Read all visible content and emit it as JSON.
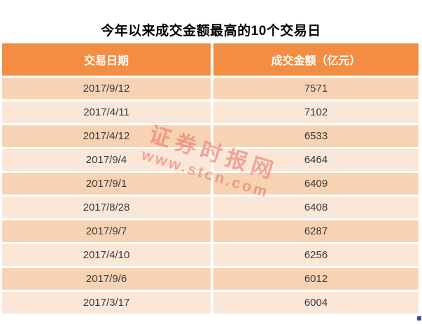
{
  "title": "今年以来成交金额最高的10个交易日",
  "table": {
    "headers": [
      "交易日期",
      "成交金额（亿元）"
    ],
    "rows": [
      {
        "date": "2017/9/12",
        "amount": "7571"
      },
      {
        "date": "2017/4/11",
        "amount": "7102"
      },
      {
        "date": "2017/4/12",
        "amount": "6533"
      },
      {
        "date": "2017/9/4",
        "amount": "6464"
      },
      {
        "date": "2017/9/1",
        "amount": "6409"
      },
      {
        "date": "2017/8/28",
        "amount": "6408"
      },
      {
        "date": "2017/9/7",
        "amount": "6287"
      },
      {
        "date": "2017/4/10",
        "amount": "6256"
      },
      {
        "date": "2017/9/6",
        "amount": "6012"
      },
      {
        "date": "2017/3/17",
        "amount": "6004"
      }
    ]
  },
  "watermark": {
    "site_name": "证券时报网",
    "url": "www.stcn.com"
  },
  "colors": {
    "header_bg": "#F28D42",
    "header_text": "#FFFFFF",
    "row_dark": "#F8D3B3",
    "row_light": "#FBE7D8",
    "cell_text": "#3A3A3A",
    "watermark": "#E7635A",
    "handle": "#3E4D8B"
  },
  "chart_data": {
    "type": "table",
    "title": "今年以来成交金额最高的10个交易日",
    "columns": [
      "交易日期",
      "成交金额（亿元）"
    ],
    "rows": [
      [
        "2017/9/12",
        7571
      ],
      [
        "2017/4/11",
        7102
      ],
      [
        "2017/4/12",
        6533
      ],
      [
        "2017/9/4",
        6464
      ],
      [
        "2017/9/1",
        6409
      ],
      [
        "2017/8/28",
        6408
      ],
      [
        "2017/9/7",
        6287
      ],
      [
        "2017/4/10",
        6256
      ],
      [
        "2017/9/6",
        6012
      ],
      [
        "2017/3/17",
        6004
      ]
    ]
  }
}
